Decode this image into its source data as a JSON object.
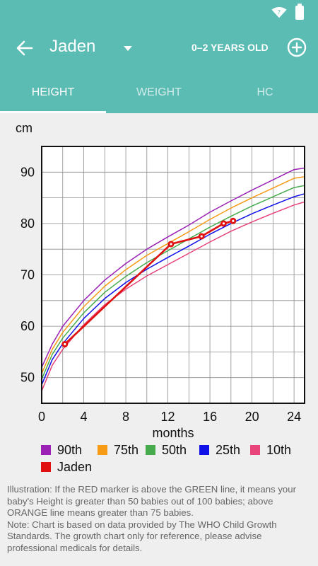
{
  "app": {
    "child_name": "Jaden",
    "age_range": "0–2 YEARS OLD"
  },
  "tabs": [
    {
      "label": "HEIGHT",
      "active": true
    },
    {
      "label": "WEIGHT",
      "active": false
    },
    {
      "label": "HC",
      "active": false
    }
  ],
  "colors": {
    "appbar": "#5bbcb3"
  },
  "chart_data": {
    "type": "line",
    "ylabel": "cm",
    "xlabel": "months",
    "xlim": [
      0,
      25
    ],
    "ylim": [
      45,
      95
    ],
    "xticks": [
      0,
      4,
      8,
      12,
      16,
      20,
      24
    ],
    "yticks": [
      50,
      60,
      70,
      80,
      90
    ],
    "grid": true,
    "series": [
      {
        "name": "90th",
        "color": "#9b22b5",
        "x": [
          0,
          1,
          2,
          4,
          6,
          8,
          10,
          12,
          14,
          16,
          18,
          20,
          22,
          24,
          25
        ],
        "y": [
          52.0,
          56.5,
          60.0,
          65.0,
          69.0,
          72.2,
          75.0,
          77.4,
          79.7,
          82.2,
          84.4,
          86.5,
          88.5,
          90.5,
          90.8
        ]
      },
      {
        "name": "75th",
        "color": "#f79a16",
        "x": [
          0,
          1,
          2,
          4,
          6,
          8,
          10,
          12,
          14,
          16,
          18,
          20,
          22,
          24,
          25
        ],
        "y": [
          50.8,
          55.5,
          58.8,
          63.8,
          67.8,
          71.0,
          73.8,
          76.1,
          78.4,
          80.8,
          83.0,
          85.0,
          86.9,
          88.8,
          89.1
        ]
      },
      {
        "name": "50th",
        "color": "#46ab4c",
        "x": [
          0,
          1,
          2,
          4,
          6,
          8,
          10,
          12,
          14,
          16,
          18,
          20,
          22,
          24,
          25
        ],
        "y": [
          49.7,
          54.5,
          57.7,
          62.6,
          66.6,
          69.7,
          72.4,
          74.7,
          77.0,
          79.3,
          81.4,
          83.4,
          85.2,
          87.0,
          87.4
        ]
      },
      {
        "name": "25th",
        "color": "#1010e8",
        "x": [
          0,
          1,
          2,
          4,
          6,
          8,
          10,
          12,
          14,
          16,
          18,
          20,
          22,
          24,
          25
        ],
        "y": [
          48.6,
          53.5,
          56.6,
          61.5,
          65.4,
          68.5,
          71.1,
          73.4,
          75.6,
          77.9,
          80.0,
          81.9,
          83.6,
          85.2,
          85.8
        ]
      },
      {
        "name": "10th",
        "color": "#e8457a",
        "x": [
          0,
          1,
          2,
          4,
          6,
          8,
          10,
          12,
          14,
          16,
          18,
          20,
          22,
          24,
          25
        ],
        "y": [
          47.4,
          52.4,
          55.5,
          60.3,
          64.2,
          67.2,
          69.8,
          72.0,
          74.2,
          76.4,
          78.5,
          80.3,
          82.0,
          83.6,
          84.2
        ]
      },
      {
        "name": "Jaden",
        "color": "#e01010",
        "x": [
          2.2,
          12.3,
          15.2,
          17.3,
          18.2
        ],
        "y": [
          56.5,
          76.0,
          77.5,
          80.0,
          80.5
        ]
      }
    ]
  },
  "note": "Illustration: If the RED marker is above the GREEN line, it means your baby's Height is greater than 50 babies out of 100 babies; above ORANGE line means greater than 75 babies.\nNote: Chart is based on data provided by The WHO Child Growth Standards. The growth chart only for reference, please advise professional medicals for details."
}
